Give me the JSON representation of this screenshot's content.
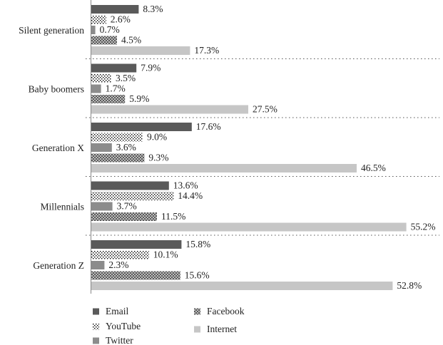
{
  "chart_data": {
    "type": "bar",
    "orientation": "horizontal",
    "categories": [
      "Silent generation",
      "Baby boomers",
      "Generation X",
      "Millennials",
      "Generation Z"
    ],
    "series": [
      {
        "name": "Email",
        "color": "#5a5a5a",
        "values": [
          8.3,
          7.9,
          17.6,
          13.6,
          15.8
        ],
        "value_labels": [
          "8.3%",
          "7.9%",
          "17.6%",
          "13.6%",
          "15.8%"
        ]
      },
      {
        "name": "YouTube",
        "color": "#000000",
        "pattern": "dots",
        "values": [
          2.6,
          3.5,
          9.0,
          14.4,
          10.1
        ],
        "value_labels": [
          "2.6%",
          "3.5%",
          "9.0%",
          "14.4%",
          "10.1%"
        ]
      },
      {
        "name": "Twitter",
        "color": "#8c8c8c",
        "values": [
          0.7,
          1.7,
          3.6,
          3.7,
          2.3
        ],
        "value_labels": [
          "0.7%",
          "1.7%",
          "3.6%",
          "3.7%",
          "2.3%"
        ]
      },
      {
        "name": "Facebook",
        "color": "#6e6e6e",
        "pattern": "checker",
        "values": [
          4.5,
          5.9,
          9.3,
          11.5,
          15.6
        ],
        "value_labels": [
          "4.5%",
          "5.9%",
          "9.3%",
          "11.5%",
          "15.6%"
        ]
      },
      {
        "name": "Internet",
        "color": "#c6c6c6",
        "values": [
          17.3,
          27.5,
          46.5,
          55.2,
          52.8
        ],
        "value_labels": [
          "17.3%",
          "27.5%",
          "46.5%",
          "55.2%",
          "52.8%"
        ]
      }
    ]
  }
}
